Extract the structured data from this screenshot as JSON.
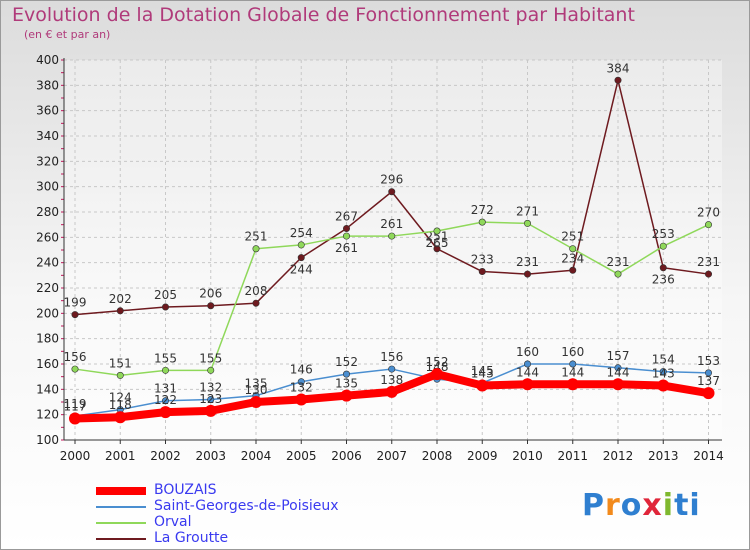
{
  "title": "Evolution de la Dotation Globale de Fonctionnement par Habitant",
  "subtitle": "(en € et par an)",
  "logo_text": "Proxiti",
  "colors": {
    "title": "#b03a7a",
    "legend_text": "#3a3af0",
    "grid": "#c8c8c8"
  },
  "chart_data": {
    "type": "line",
    "title": "Evolution de la Dotation Globale de Fonctionnement par Habitant",
    "subtitle": "(en € et par an)",
    "xlabel": "",
    "ylabel": "",
    "ylim": [
      100,
      400
    ],
    "yticks": [
      100,
      120,
      140,
      160,
      180,
      200,
      220,
      240,
      260,
      280,
      300,
      320,
      340,
      360,
      380,
      400
    ],
    "grid": true,
    "legend_position": "bottom-left",
    "categories": [
      "2000",
      "2001",
      "2002",
      "2003",
      "2004",
      "2005",
      "2006",
      "2007",
      "2008",
      "2009",
      "2010",
      "2011",
      "2012",
      "2013",
      "2014"
    ],
    "series": [
      {
        "name": "La Groutte",
        "color": "#6e1a1f",
        "width": 1.5,
        "values": [
          199,
          202,
          205,
          206,
          208,
          244,
          267,
          296,
          251,
          233,
          231,
          234,
          384,
          236,
          231
        ],
        "label_below": [
          false,
          false,
          false,
          false,
          false,
          true,
          false,
          false,
          false,
          false,
          false,
          false,
          false,
          true,
          false
        ]
      },
      {
        "name": "Orval",
        "color": "#8fd85a",
        "width": 1.5,
        "values": [
          156,
          151,
          155,
          155,
          251,
          254,
          261,
          261,
          265,
          272,
          271,
          251,
          231,
          253,
          270
        ],
        "label_below": [
          false,
          false,
          false,
          false,
          false,
          false,
          true,
          false,
          true,
          false,
          false,
          false,
          false,
          false,
          false
        ]
      },
      {
        "name": "Saint-Georges-de-Poisieux",
        "color": "#4a8ed0",
        "width": 1.5,
        "values": [
          119,
          124,
          131,
          132,
          135,
          146,
          152,
          156,
          148,
          145,
          160,
          160,
          157,
          154,
          153
        ],
        "label_below": [
          false,
          false,
          false,
          false,
          false,
          false,
          false,
          false,
          false,
          false,
          false,
          false,
          false,
          false,
          false
        ]
      },
      {
        "name": "BOUZAIS",
        "color": "#ff0000",
        "width": 8,
        "values": [
          117,
          118,
          122,
          123,
          130,
          132,
          135,
          138,
          152,
          143,
          144,
          144,
          144,
          143,
          137
        ],
        "label_below": [
          false,
          false,
          false,
          false,
          false,
          false,
          false,
          false,
          false,
          false,
          false,
          false,
          false,
          false,
          false
        ]
      }
    ]
  },
  "legend": [
    {
      "name": "BOUZAIS",
      "color": "#ff0000",
      "thickness": 8
    },
    {
      "name": "Saint-Georges-de-Poisieux",
      "color": "#4a8ed0",
      "thickness": 2
    },
    {
      "name": "Orval",
      "color": "#8fd85a",
      "thickness": 2
    },
    {
      "name": "La Groutte",
      "color": "#6e1a1f",
      "thickness": 2
    }
  ]
}
